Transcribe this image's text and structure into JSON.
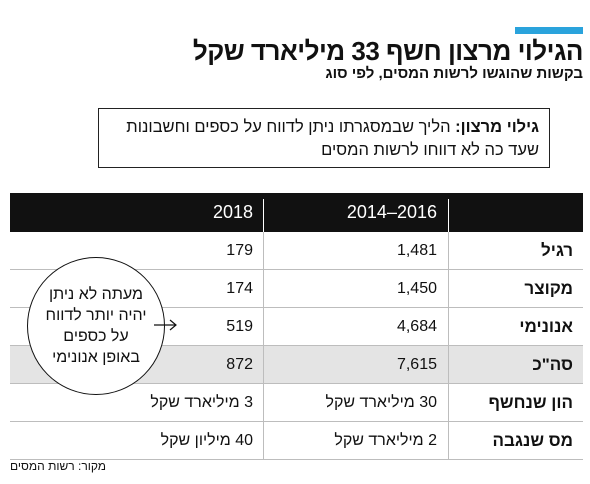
{
  "header": {
    "title": "הגילוי מרצון חשף 33 מיליארד שקל",
    "subtitle": "בקשות שהוגשו לרשות המסים, לפי סוג"
  },
  "definition": {
    "term": "גילוי מרצון:",
    "text": "הליך שבמסגרתו ניתן לדווח על כספים וחשבונות שעד כה לא דווחו לרשות המסים"
  },
  "table": {
    "columns": [
      "2016–2014",
      "2018"
    ],
    "rows": [
      {
        "label": "רגיל",
        "cells": [
          "1,481",
          "179"
        ]
      },
      {
        "label": "מקוצר",
        "cells": [
          "1,450",
          "174"
        ]
      },
      {
        "label": "אנונימי",
        "cells": [
          "4,684",
          "519"
        ]
      },
      {
        "label": "סה\"כ",
        "cells": [
          "7,615",
          "872"
        ]
      },
      {
        "label": "הון שנחשף",
        "cells": [
          "30 מיליארד שקל",
          "3 מיליארד שקל"
        ]
      },
      {
        "label": "מס שנגבה",
        "cells": [
          "2 מיליארד שקל",
          "40 מיליון שקל"
        ]
      }
    ]
  },
  "callout": [
    "מעתה לא ניתן",
    "יהיה יותר לדווח",
    "על כספים",
    "באופן אנונימי"
  ],
  "source": "מקור: רשות המסים"
}
